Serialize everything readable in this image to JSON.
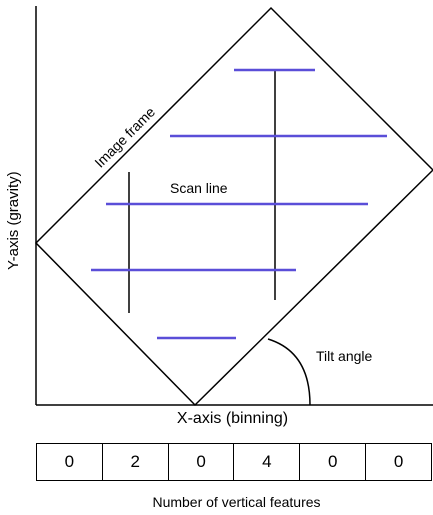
{
  "labels": {
    "image_frame": "Image frame",
    "scan_line": "Scan line",
    "tilt_angle": "Tilt angle",
    "x_axis": "X-axis (binning)",
    "y_axis": "Y-axis (gravity)",
    "counts_caption": "Number of vertical features"
  },
  "bins": [
    "0",
    "2",
    "0",
    "4",
    "0",
    "0"
  ],
  "colors": {
    "scan_line": "#5a4ed8",
    "stroke": "#000000"
  }
}
